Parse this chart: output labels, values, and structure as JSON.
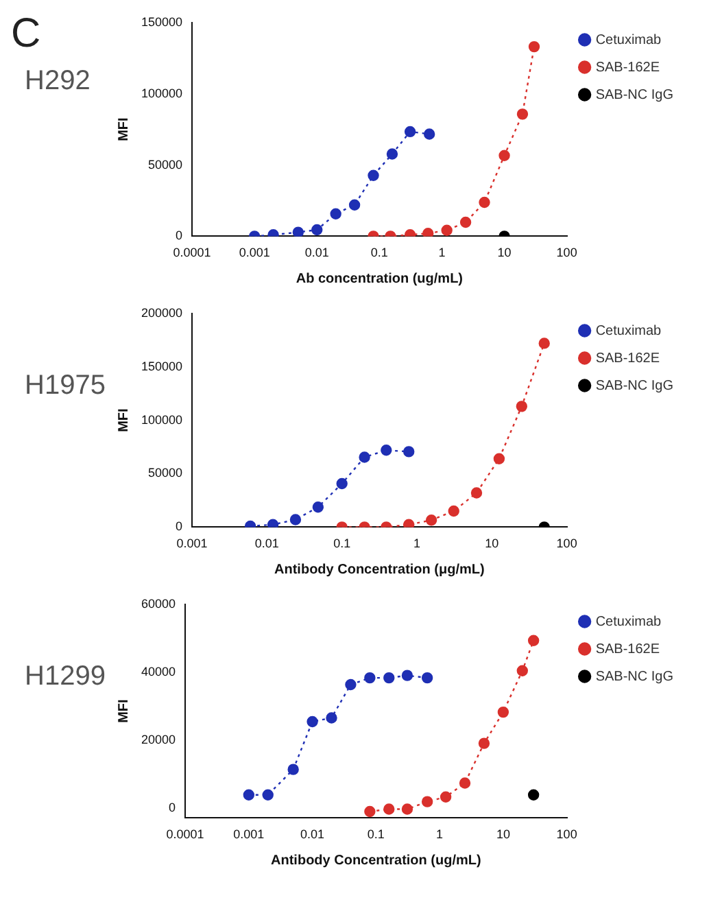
{
  "chart_data": [
    {
      "type": "line",
      "title": "H292",
      "annotations": [
        "C"
      ],
      "xlabel": "Ab concentration (ug/mL)",
      "ylabel": "MFI",
      "log": "x",
      "xlim": [
        0.0001,
        100
      ],
      "xticks": [
        0.0001,
        0.001,
        0.01,
        0.1,
        1,
        10,
        100
      ],
      "ylim": [
        0,
        150000
      ],
      "yticks": [
        0,
        50000,
        100000,
        150000
      ],
      "grid": false,
      "legend": "top right",
      "marker": "circle",
      "line_style": "dotted",
      "series": [
        {
          "name": "Cetuximab",
          "color": "#1f2fb4",
          "x": [
            0.001,
            0.002,
            0.005,
            0.01,
            0.02,
            0.04,
            0.08,
            0.16,
            0.31,
            0.63
          ],
          "values": [
            0,
            1000,
            2800,
            4500,
            15700,
            22000,
            42700,
            57700,
            73400,
            71700
          ]
        },
        {
          "name": "SAB-162E",
          "color": "#d9302c",
          "x": [
            0.08,
            0.15,
            0.31,
            0.6,
            1.2,
            2.4,
            4.8,
            10,
            19.5,
            30
          ],
          "values": [
            0,
            0,
            1000,
            2000,
            4200,
            9800,
            23800,
            56600,
            85700,
            133000
          ]
        },
        {
          "name": "SAB-NC IgG",
          "color": "#000000",
          "x": [
            10
          ],
          "values": [
            0
          ]
        }
      ]
    },
    {
      "type": "line",
      "title": "H1975",
      "xlabel": "Antibody Concentration (μg/mL)",
      "ylabel": "MFI",
      "log": "x",
      "xlim": [
        0.001,
        100
      ],
      "xticks": [
        0.001,
        0.01,
        0.1,
        1,
        10,
        100
      ],
      "ylim": [
        0,
        200000
      ],
      "yticks": [
        0,
        50000,
        100000,
        150000,
        200000
      ],
      "grid": false,
      "legend": "top right",
      "marker": "circle",
      "line_style": "dotted",
      "series": [
        {
          "name": "Cetuximab",
          "color": "#1f2fb4",
          "x": [
            0.006,
            0.012,
            0.024,
            0.048,
            0.1,
            0.2,
            0.39,
            0.78
          ],
          "values": [
            900,
            2300,
            7000,
            18700,
            40700,
            65400,
            72000,
            70600
          ]
        },
        {
          "name": "SAB-162E",
          "color": "#d9302c",
          "x": [
            0.1,
            0.2,
            0.39,
            0.78,
            1.56,
            3.1,
            6.25,
            12.5,
            25,
            50
          ],
          "values": [
            0,
            0,
            0,
            2300,
            6500,
            15000,
            32000,
            64000,
            113000,
            172000
          ]
        },
        {
          "name": "SAB-NC IgG",
          "color": "#000000",
          "x": [
            50
          ],
          "values": [
            0
          ]
        }
      ]
    },
    {
      "type": "line",
      "title": "H1299",
      "xlabel": "Antibody Concentration (ug/mL)",
      "ylabel": "MFI",
      "log": "x",
      "xlim": [
        0.0001,
        100
      ],
      "xticks": [
        0.0001,
        0.001,
        0.01,
        0.1,
        1,
        10,
        100
      ],
      "ylim": [
        -3000,
        60000
      ],
      "yticks": [
        0,
        20000,
        40000,
        60000
      ],
      "grid": false,
      "legend": "top right",
      "marker": "circle",
      "line_style": "dotted",
      "series": [
        {
          "name": "Cetuximab",
          "color": "#1f2fb4",
          "x": [
            0.001,
            0.002,
            0.005,
            0.01,
            0.02,
            0.04,
            0.08,
            0.16,
            0.31,
            0.64
          ],
          "values": [
            3800,
            3800,
            11300,
            25400,
            26500,
            36300,
            38300,
            38300,
            39000,
            38300
          ]
        },
        {
          "name": "SAB-162E",
          "color": "#d9302c",
          "x": [
            0.08,
            0.16,
            0.31,
            0.64,
            1.25,
            2.5,
            5,
            10,
            20,
            30
          ],
          "values": [
            -1100,
            -400,
            -400,
            1800,
            3200,
            7300,
            19000,
            28200,
            40400,
            49300
          ]
        },
        {
          "name": "SAB-NC IgG",
          "color": "#000000",
          "x": [
            30
          ],
          "values": [
            3800
          ]
        }
      ]
    }
  ]
}
